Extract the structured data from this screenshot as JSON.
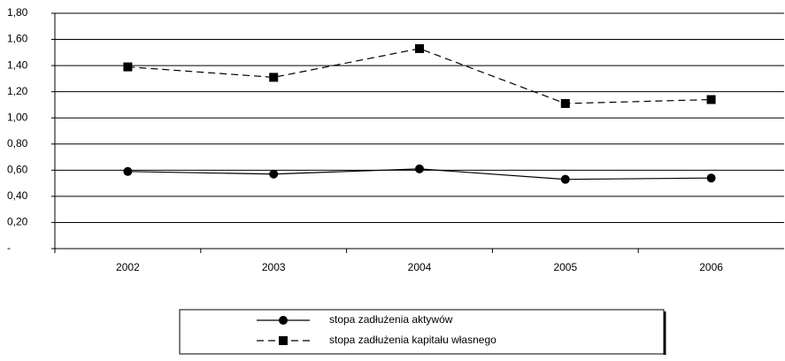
{
  "chart_data": {
    "type": "line",
    "categories": [
      "2002",
      "2003",
      "2004",
      "2005",
      "2006"
    ],
    "series": [
      {
        "name": "stopa zadłużenia aktywów",
        "color": "#000000",
        "dash": "solid",
        "marker": "circle",
        "values": [
          0.59,
          0.57,
          0.61,
          0.53,
          0.54
        ]
      },
      {
        "name": "stopa zadłużenia kapitału własnego",
        "color": "#000000",
        "dash": "dashed",
        "marker": "square",
        "values": [
          1.39,
          1.31,
          1.53,
          1.11,
          1.14
        ]
      }
    ],
    "ylim": [
      0,
      1.8
    ],
    "yticks": [
      {
        "value": 0,
        "label": "-"
      },
      {
        "value": 0.2,
        "label": "0,20"
      },
      {
        "value": 0.4,
        "label": "0,40"
      },
      {
        "value": 0.6,
        "label": "0,60"
      },
      {
        "value": 0.8,
        "label": "0,80"
      },
      {
        "value": 1.0,
        "label": "1,00"
      },
      {
        "value": 1.2,
        "label": "1,20"
      },
      {
        "value": 1.4,
        "label": "1,40"
      },
      {
        "value": 1.6,
        "label": "1,60"
      },
      {
        "value": 1.8,
        "label": "1,80"
      }
    ],
    "grid": true,
    "legend": "bottom"
  }
}
